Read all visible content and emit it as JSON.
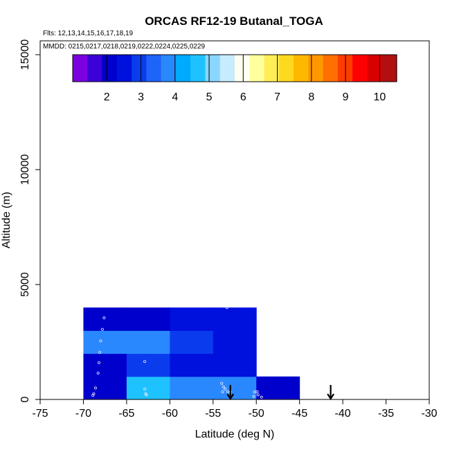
{
  "chart_data": {
    "type": "heatmap",
    "title": "ORCAS RF12-19 Butanal_TOGA",
    "flights_label": "Flts: 12,13,14,15,16,17,18,19",
    "mmdd_label": "MMDD: 0215,0217,0218,0219,0222,0224,0225,0229",
    "xlabel": "Latitude (deg N)",
    "ylabel": "Altitude (m)",
    "xlim": [
      -75,
      -30
    ],
    "ylim": [
      0,
      16000
    ],
    "x_ticks": [
      -75,
      -70,
      -65,
      -60,
      -55,
      -50,
      -45,
      -40,
      -35,
      -30
    ],
    "y_ticks": [
      0,
      5000,
      10000,
      15000
    ],
    "colorbar": {
      "range": [
        1,
        10.5
      ],
      "ticks": [
        2,
        3,
        4,
        5,
        6,
        7,
        8,
        9,
        10
      ],
      "colors": [
        "#7a00e0",
        "#3c00d8",
        "#0000cc",
        "#0010dd",
        "#0a3cee",
        "#1e64f8",
        "#2a88ff",
        "#00aaff",
        "#1ec2ff",
        "#8ad6ff",
        "#c8ecff",
        "#fffff0",
        "#ffffa0",
        "#ffee55",
        "#ffd820",
        "#ffb800",
        "#ff9800",
        "#ff7000",
        "#ff3c00",
        "#ff0000",
        "#d80000",
        "#b01010"
      ]
    },
    "cells": [
      {
        "lat0": -70,
        "lat1": -65,
        "alt0": 0,
        "alt1": 1000,
        "value": 2.1
      },
      {
        "lat0": -65,
        "lat1": -60,
        "alt0": 0,
        "alt1": 1000,
        "value": 4.6
      },
      {
        "lat0": -60,
        "lat1": -55,
        "alt0": 0,
        "alt1": 1000,
        "value": 4.0
      },
      {
        "lat0": -55,
        "lat1": -50,
        "alt0": 0,
        "alt1": 1000,
        "value": 3.7
      },
      {
        "lat0": -50,
        "lat1": -45,
        "alt0": 0,
        "alt1": 1000,
        "value": 2.0
      },
      {
        "lat0": -70,
        "lat1": -65,
        "alt0": 1000,
        "alt1": 2000,
        "value": 2.1
      },
      {
        "lat0": -65,
        "lat1": -60,
        "alt0": 1000,
        "alt1": 2000,
        "value": 3.0
      },
      {
        "lat0": -60,
        "lat1": -55,
        "alt0": 1000,
        "alt1": 2000,
        "value": 2.6
      },
      {
        "lat0": -55,
        "lat1": -50,
        "alt0": 1000,
        "alt1": 2000,
        "value": 2.4
      },
      {
        "lat0": -70,
        "lat1": -65,
        "alt0": 2000,
        "alt1": 3000,
        "value": 4.0
      },
      {
        "lat0": -65,
        "lat1": -60,
        "alt0": 2000,
        "alt1": 3000,
        "value": 3.6
      },
      {
        "lat0": -60,
        "lat1": -55,
        "alt0": 2000,
        "alt1": 3000,
        "value": 2.8
      },
      {
        "lat0": -55,
        "lat1": -50,
        "alt0": 2000,
        "alt1": 3000,
        "value": 2.6
      },
      {
        "lat0": -70,
        "lat1": -65,
        "alt0": 3000,
        "alt1": 4000,
        "value": 2.1
      },
      {
        "lat0": -65,
        "lat1": -60,
        "alt0": 3000,
        "alt1": 4000,
        "value": 2.1
      },
      {
        "lat0": -60,
        "lat1": -55,
        "alt0": 3000,
        "alt1": 4000,
        "value": 2.3
      },
      {
        "lat0": -55,
        "lat1": -50,
        "alt0": 3000,
        "alt1": 4000,
        "value": 2.5
      }
    ],
    "samples": [
      [
        -67.6,
        3550
      ],
      [
        -67.8,
        3050
      ],
      [
        -68.0,
        2550
      ],
      [
        -68.1,
        2050
      ],
      [
        -68.2,
        1600
      ],
      [
        -68.3,
        1150
      ],
      [
        -68.6,
        500
      ],
      [
        -68.8,
        250
      ],
      [
        -68.9,
        180
      ],
      [
        -62.9,
        1650
      ],
      [
        -62.9,
        450
      ],
      [
        -62.8,
        250
      ],
      [
        -62.7,
        200
      ],
      [
        -53.4,
        4000
      ],
      [
        -54.0,
        700
      ],
      [
        -53.8,
        550
      ],
      [
        -53.6,
        450
      ],
      [
        -53.9,
        330
      ],
      [
        -53.3,
        330
      ],
      [
        -53.0,
        330
      ],
      [
        -50.2,
        330
      ],
      [
        -49.9,
        330
      ],
      [
        -50.3,
        130
      ],
      [
        -49.8,
        200
      ],
      [
        -49.4,
        100
      ]
    ],
    "arrows": [
      -53.0,
      -41.4
    ]
  }
}
